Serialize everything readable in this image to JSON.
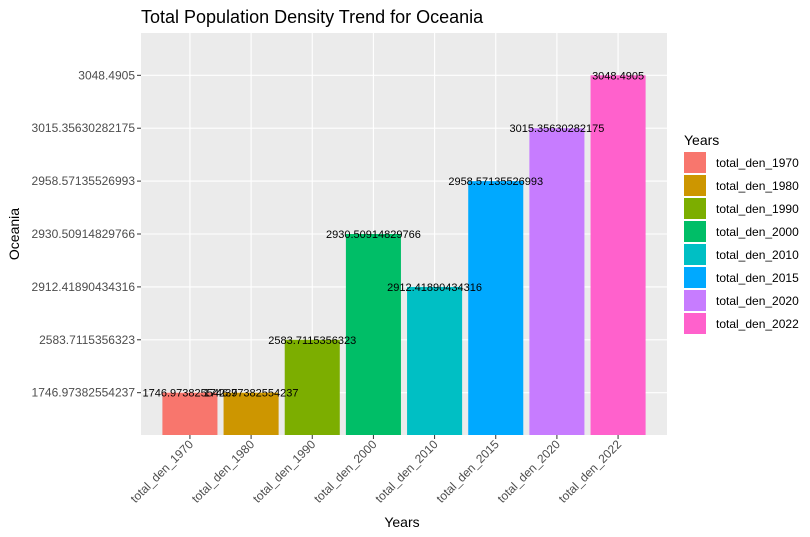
{
  "chart_data": {
    "type": "bar",
    "title": "Total Population Density Trend for Oceania",
    "xlabel": "Years",
    "ylabel": "Oceania",
    "y_scale": "discrete (each value is its own ordered tick level)",
    "grid": true,
    "legend_title": "Years",
    "legend_position": "right",
    "categories": [
      "total_den_1970",
      "total_den_1980",
      "total_den_1990",
      "total_den_2000",
      "total_den_2010",
      "total_den_2015",
      "total_den_2020",
      "total_den_2022"
    ],
    "values": [
      1746.97382554237,
      1746.97382554237,
      2583.7115356323,
      2930.50914829766,
      2912.41890434316,
      2958.57135526993,
      3015.35630282175,
      3048.4905
    ],
    "value_labels": [
      "1746.97382554237",
      "1746.97382554237",
      "2583.7115356323",
      "2930.50914829766",
      "2912.41890434316",
      "2958.57135526993",
      "3015.35630282175",
      "3048.4905"
    ],
    "y_ticks": [
      "1746.97382554237",
      "2583.7115356323",
      "2912.41890434316",
      "2930.50914829766",
      "2958.57135526993",
      "3015.35630282175",
      "3048.4905"
    ],
    "colors": [
      "#F8766D",
      "#CD9600",
      "#7CAE00",
      "#00BE67",
      "#00BFC4",
      "#00A9FF",
      "#C77CFF",
      "#FF61CC"
    ]
  }
}
